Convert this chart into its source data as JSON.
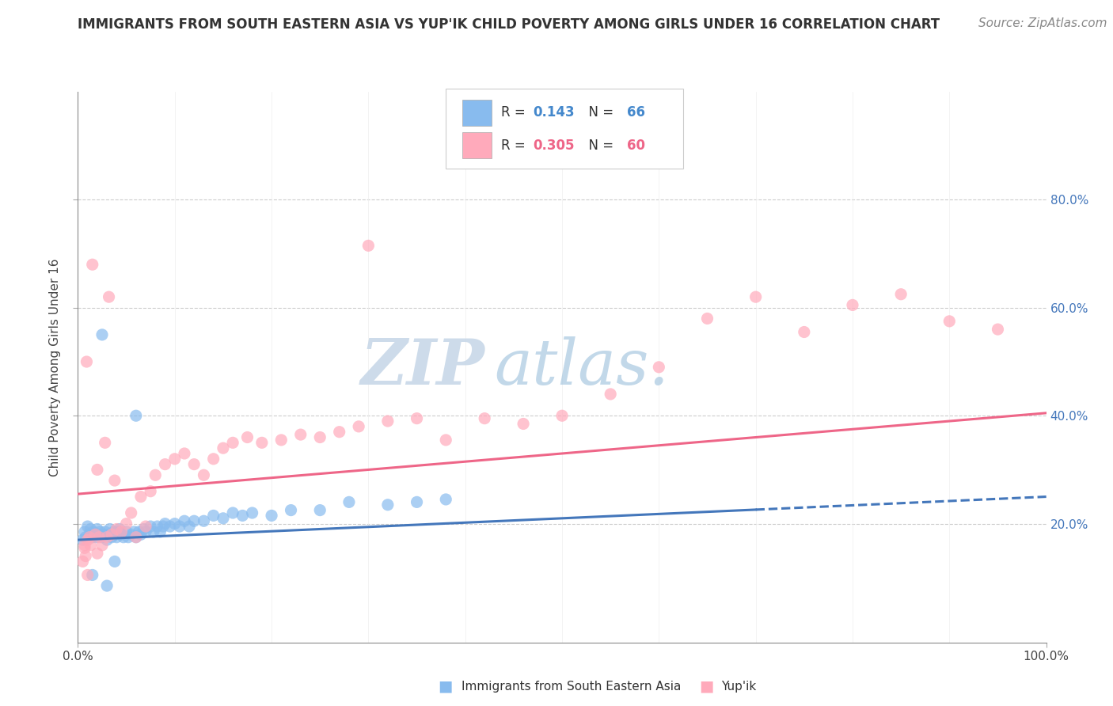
{
  "title": "IMMIGRANTS FROM SOUTH EASTERN ASIA VS YUP'IK CHILD POVERTY AMONG GIRLS UNDER 16 CORRELATION CHART",
  "source": "Source: ZipAtlas.com",
  "ylabel": "Child Poverty Among Girls Under 16",
  "watermark_zip": "ZIP",
  "watermark_atlas": "atlas.",
  "legend_blue_r": "0.143",
  "legend_blue_n": "66",
  "legend_pink_r": "0.305",
  "legend_pink_n": "60",
  "blue_color": "#88BBEE",
  "pink_color": "#FFAABB",
  "blue_line_color": "#4477BB",
  "pink_line_color": "#EE6688",
  "background_color": "#FFFFFF",
  "xlim": [
    0.0,
    1.0
  ],
  "ylim": [
    -0.02,
    1.0
  ],
  "ytick_positions": [
    0.2,
    0.4,
    0.6,
    0.8
  ],
  "ytick_labels": [
    "20.0%",
    "40.0%",
    "60.0%",
    "80.0%"
  ],
  "blue_scatter_x": [
    0.005,
    0.007,
    0.008,
    0.01,
    0.012,
    0.013,
    0.015,
    0.016,
    0.018,
    0.019,
    0.02,
    0.022,
    0.023,
    0.025,
    0.027,
    0.028,
    0.03,
    0.032,
    0.033,
    0.035,
    0.037,
    0.038,
    0.04,
    0.042,
    0.043,
    0.045,
    0.047,
    0.05,
    0.052,
    0.055,
    0.058,
    0.06,
    0.063,
    0.065,
    0.068,
    0.07,
    0.075,
    0.078,
    0.082,
    0.085,
    0.088,
    0.09,
    0.095,
    0.1,
    0.105,
    0.11,
    0.115,
    0.12,
    0.13,
    0.14,
    0.15,
    0.16,
    0.17,
    0.18,
    0.2,
    0.22,
    0.25,
    0.28,
    0.32,
    0.35,
    0.38,
    0.03,
    0.025,
    0.015,
    0.06,
    0.038
  ],
  "blue_scatter_y": [
    0.17,
    0.185,
    0.175,
    0.195,
    0.18,
    0.19,
    0.175,
    0.185,
    0.18,
    0.175,
    0.19,
    0.18,
    0.185,
    0.175,
    0.18,
    0.185,
    0.17,
    0.18,
    0.19,
    0.175,
    0.185,
    0.18,
    0.175,
    0.185,
    0.19,
    0.18,
    0.175,
    0.185,
    0.175,
    0.18,
    0.185,
    0.175,
    0.185,
    0.18,
    0.19,
    0.185,
    0.195,
    0.185,
    0.195,
    0.185,
    0.195,
    0.2,
    0.195,
    0.2,
    0.195,
    0.205,
    0.195,
    0.205,
    0.205,
    0.215,
    0.21,
    0.22,
    0.215,
    0.22,
    0.215,
    0.225,
    0.225,
    0.24,
    0.235,
    0.24,
    0.245,
    0.085,
    0.55,
    0.105,
    0.4,
    0.13
  ],
  "pink_scatter_x": [
    0.005,
    0.007,
    0.009,
    0.01,
    0.012,
    0.013,
    0.015,
    0.018,
    0.02,
    0.022,
    0.025,
    0.028,
    0.03,
    0.032,
    0.035,
    0.038,
    0.04,
    0.045,
    0.05,
    0.055,
    0.06,
    0.065,
    0.07,
    0.075,
    0.08,
    0.09,
    0.1,
    0.11,
    0.12,
    0.13,
    0.14,
    0.15,
    0.16,
    0.175,
    0.19,
    0.21,
    0.23,
    0.25,
    0.27,
    0.29,
    0.32,
    0.35,
    0.38,
    0.42,
    0.46,
    0.5,
    0.55,
    0.6,
    0.65,
    0.7,
    0.75,
    0.8,
    0.85,
    0.9,
    0.95,
    0.01,
    0.02,
    0.008,
    0.007,
    0.3
  ],
  "pink_scatter_y": [
    0.13,
    0.155,
    0.5,
    0.17,
    0.175,
    0.16,
    0.68,
    0.18,
    0.3,
    0.175,
    0.16,
    0.35,
    0.175,
    0.62,
    0.18,
    0.28,
    0.19,
    0.185,
    0.2,
    0.22,
    0.175,
    0.25,
    0.195,
    0.26,
    0.29,
    0.31,
    0.32,
    0.33,
    0.31,
    0.29,
    0.32,
    0.34,
    0.35,
    0.36,
    0.35,
    0.355,
    0.365,
    0.36,
    0.37,
    0.38,
    0.39,
    0.395,
    0.355,
    0.395,
    0.385,
    0.4,
    0.44,
    0.49,
    0.58,
    0.62,
    0.555,
    0.605,
    0.625,
    0.575,
    0.56,
    0.105,
    0.145,
    0.14,
    0.16,
    0.715
  ],
  "blue_line_y_start": 0.17,
  "blue_line_y_solid_end_x": 0.7,
  "blue_line_y_end": 0.25,
  "pink_line_y_start": 0.255,
  "pink_line_y_end": 0.405,
  "title_fontsize": 12,
  "axis_label_fontsize": 11,
  "tick_fontsize": 11,
  "source_fontsize": 11
}
